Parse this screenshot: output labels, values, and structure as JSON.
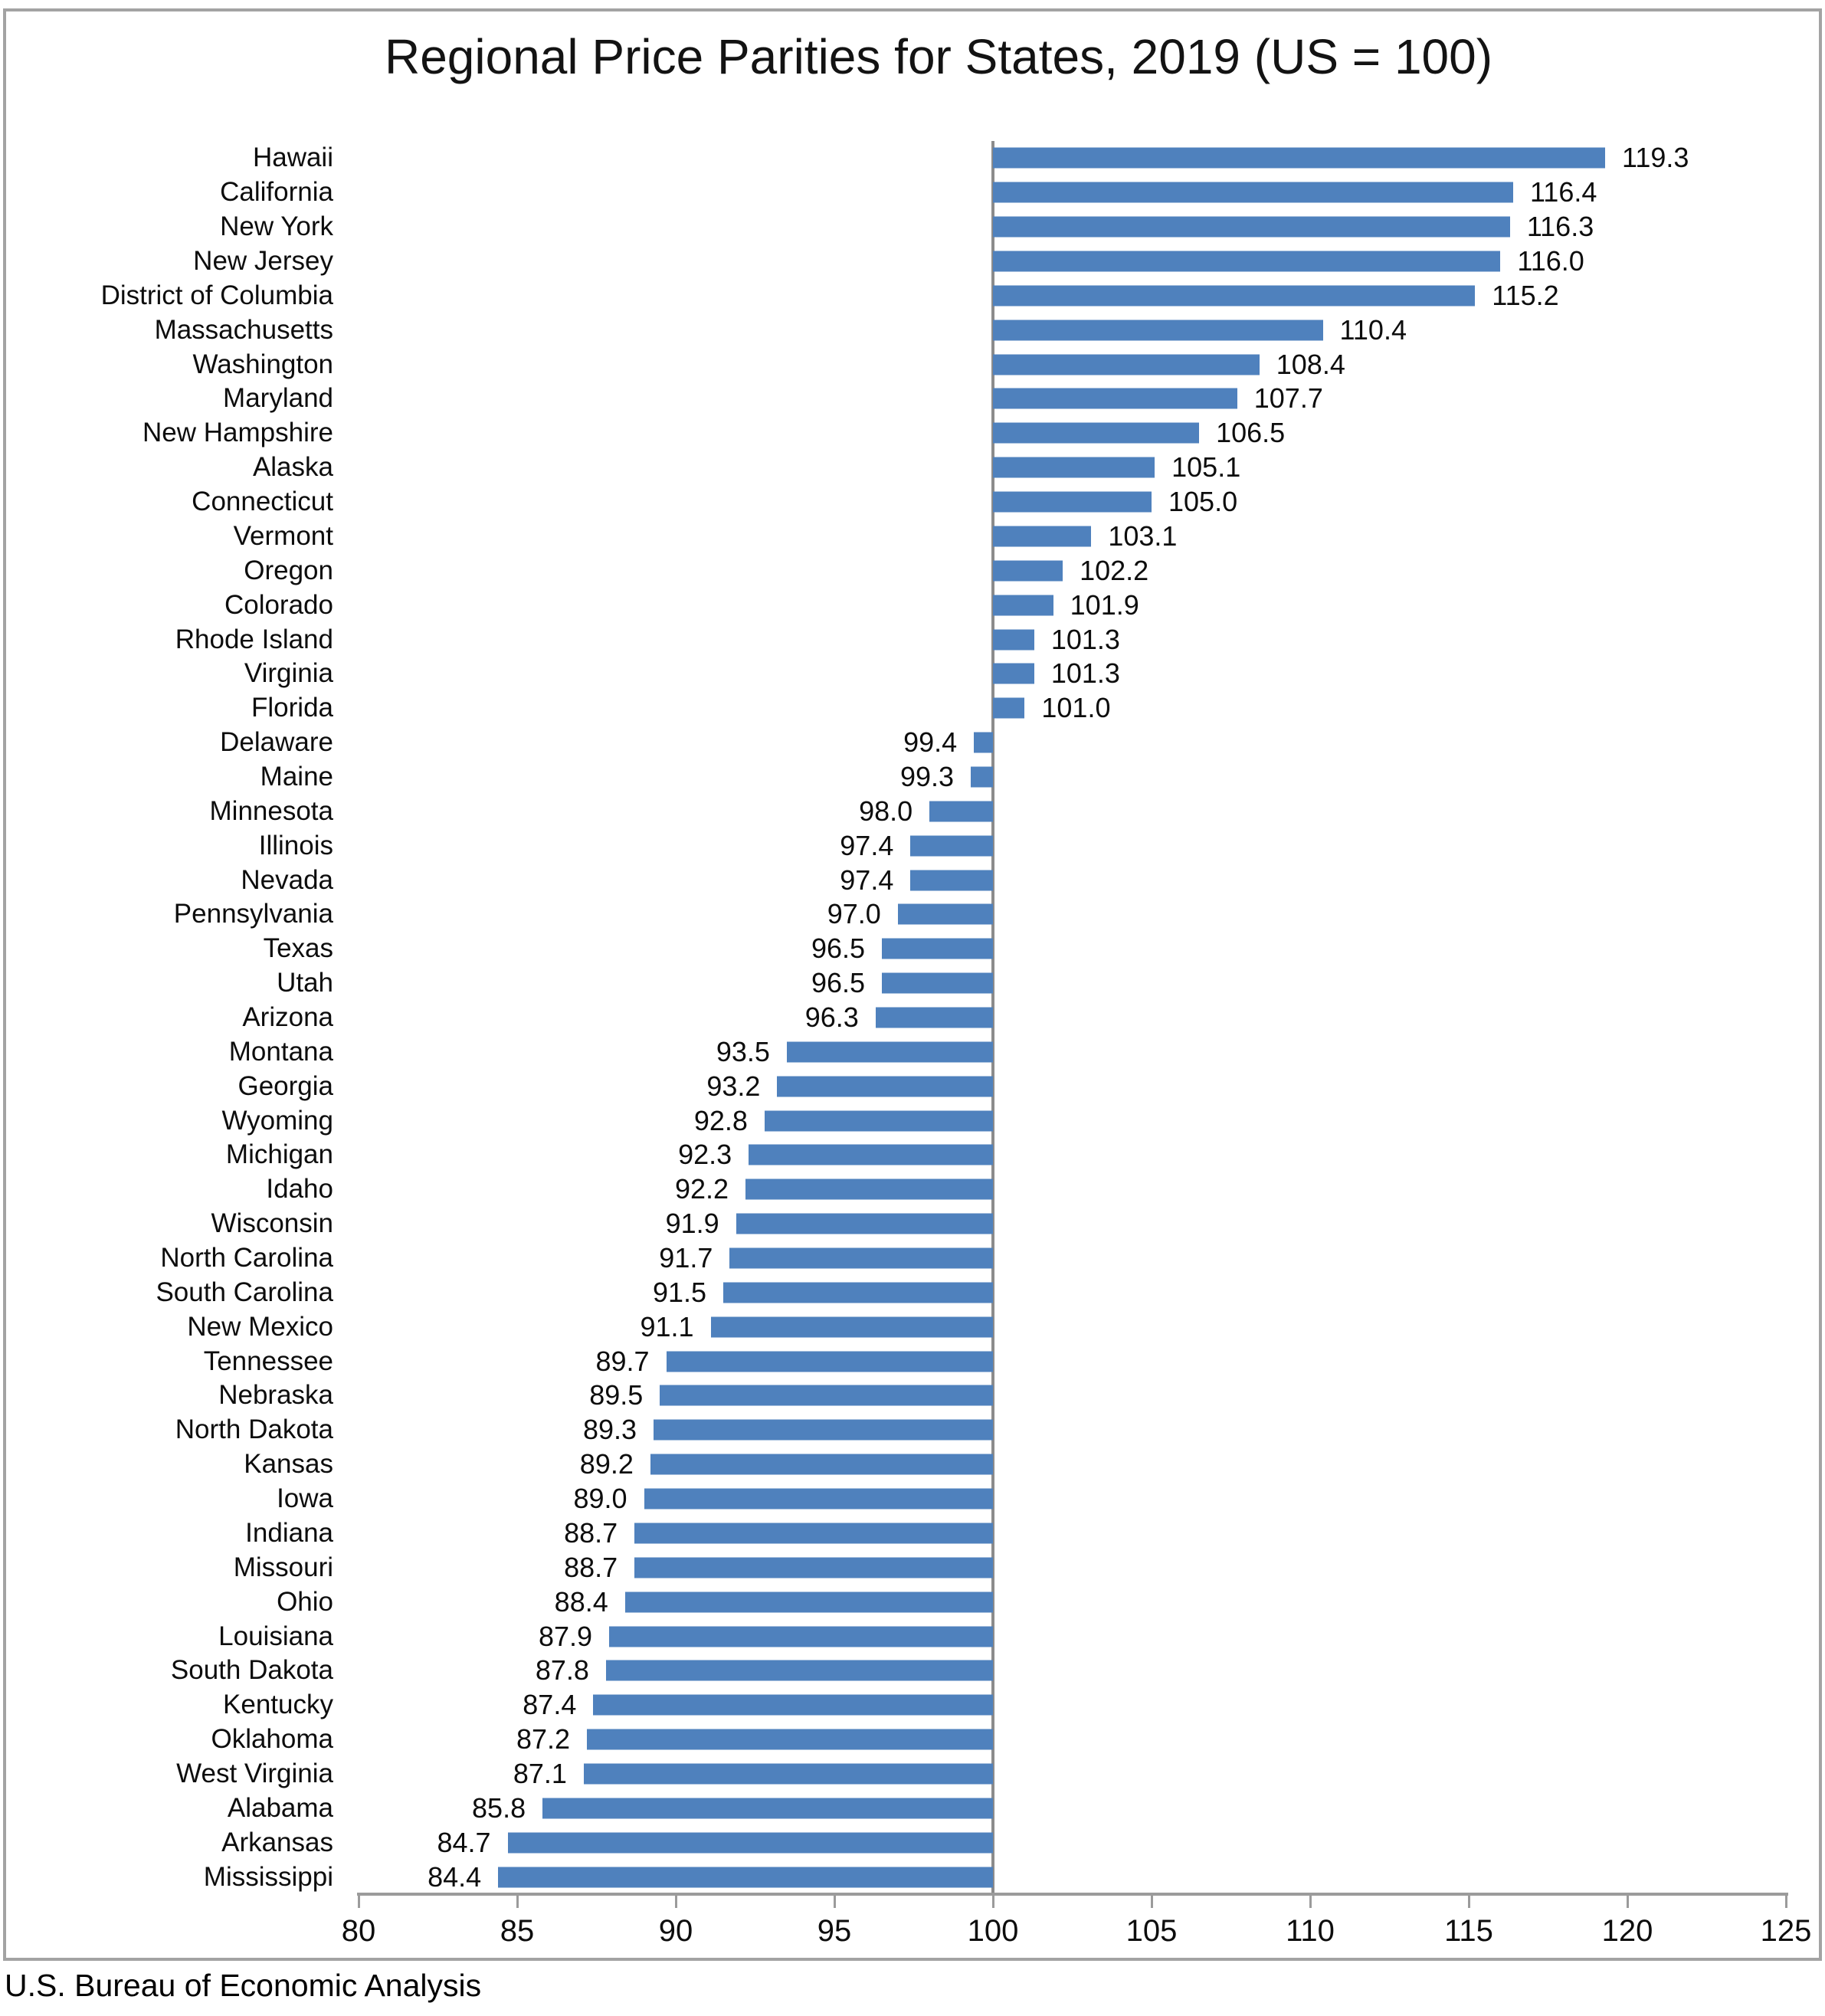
{
  "chart_data": {
    "type": "bar",
    "orientation": "horizontal",
    "title": "Regional Price Parities for States, 2019 (US = 100)",
    "source": "U.S. Bureau of Economic Analysis",
    "xlabel": "",
    "ylabel": "",
    "xlim": [
      80,
      125
    ],
    "x_ticks": [
      80,
      85,
      90,
      95,
      100,
      105,
      110,
      115,
      120,
      125
    ],
    "baseline": 100,
    "grid": false,
    "legend": false,
    "bar_color": "#4f81bd",
    "reference_line_color": "#8c8c8c",
    "axis_color": "#9b9b9b",
    "categories": [
      "Hawaii",
      "California",
      "New York",
      "New Jersey",
      "District of Columbia",
      "Massachusetts",
      "Washington",
      "Maryland",
      "New Hampshire",
      "Alaska",
      "Connecticut",
      "Vermont",
      "Oregon",
      "Colorado",
      "Rhode Island",
      "Virginia",
      "Florida",
      "Delaware",
      "Maine",
      "Minnesota",
      "Illinois",
      "Nevada",
      "Pennsylvania",
      "Texas",
      "Utah",
      "Arizona",
      "Montana",
      "Georgia",
      "Wyoming",
      "Michigan",
      "Idaho",
      "Wisconsin",
      "North Carolina",
      "South Carolina",
      "New Mexico",
      "Tennessee",
      "Nebraska",
      "North Dakota",
      "Kansas",
      "Iowa",
      "Indiana",
      "Missouri",
      "Ohio",
      "Louisiana",
      "South Dakota",
      "Kentucky",
      "Oklahoma",
      "West Virginia",
      "Alabama",
      "Arkansas",
      "Mississippi"
    ],
    "values": [
      119.3,
      116.4,
      116.3,
      116.0,
      115.2,
      110.4,
      108.4,
      107.7,
      106.5,
      105.1,
      105.0,
      103.1,
      102.2,
      101.9,
      101.3,
      101.3,
      101.0,
      99.4,
      99.3,
      98.0,
      97.4,
      97.4,
      97.0,
      96.5,
      96.5,
      96.3,
      93.5,
      93.2,
      92.8,
      92.3,
      92.2,
      91.9,
      91.7,
      91.5,
      91.1,
      89.7,
      89.5,
      89.3,
      89.2,
      89.0,
      88.7,
      88.7,
      88.4,
      87.9,
      87.8,
      87.4,
      87.2,
      87.1,
      85.8,
      84.7,
      84.4
    ]
  }
}
